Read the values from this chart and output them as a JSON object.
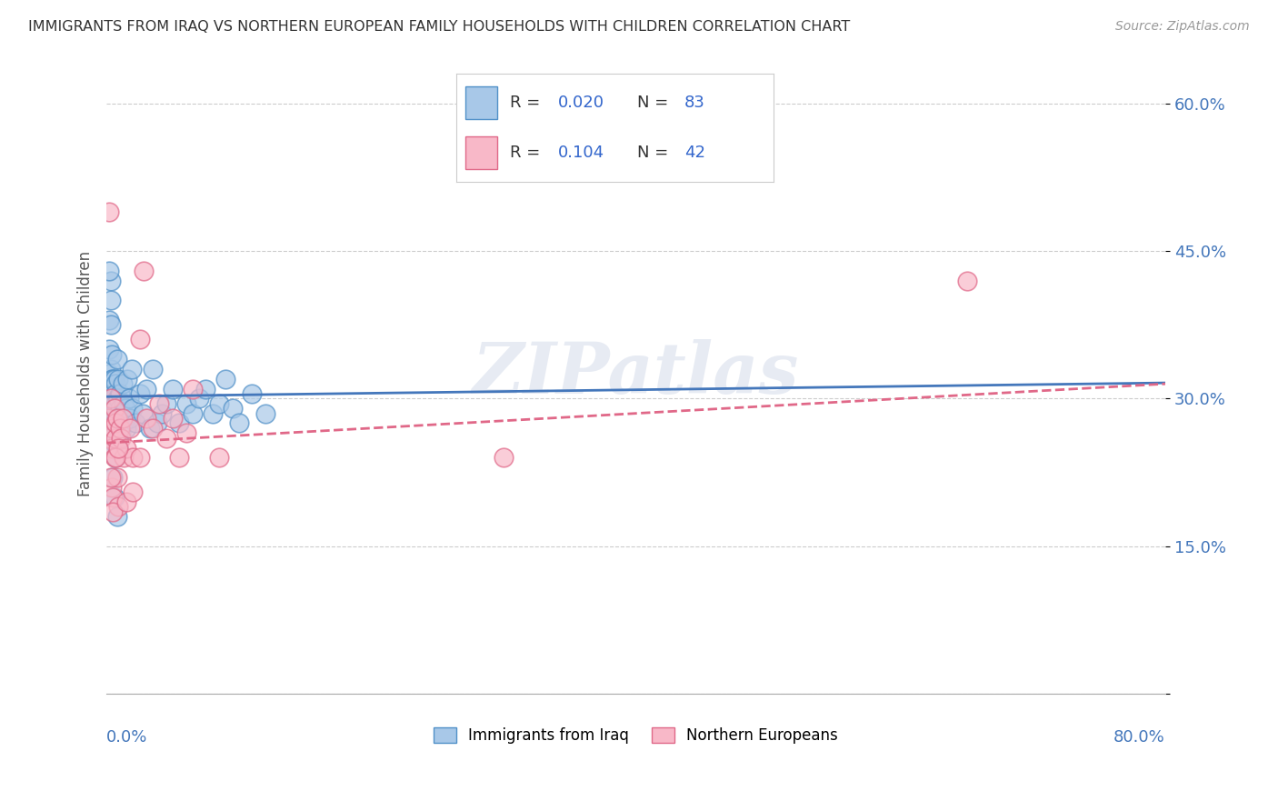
{
  "title": "IMMIGRANTS FROM IRAQ VS NORTHERN EUROPEAN FAMILY HOUSEHOLDS WITH CHILDREN CORRELATION CHART",
  "source": "Source: ZipAtlas.com",
  "ylabel": "Family Households with Children",
  "xlim": [
    0.0,
    0.8
  ],
  "ylim": [
    0.0,
    0.65
  ],
  "yticks": [
    0.0,
    0.15,
    0.3,
    0.45,
    0.6
  ],
  "ytick_labels": [
    "",
    "15.0%",
    "30.0%",
    "45.0%",
    "60.0%"
  ],
  "legend_r1": "R = ",
  "legend_v1": "0.020",
  "legend_n1_label": "  N = ",
  "legend_n1_val": "83",
  "legend_r2": "R = ",
  "legend_v2": "0.104",
  "legend_n2_label": "  N = ",
  "legend_n2_val": "42",
  "legend_label1": "Immigrants from Iraq",
  "legend_label2": "Northern Europeans",
  "color_blue_fill": "#a8c8e8",
  "color_blue_edge": "#5090c8",
  "color_pink_fill": "#f8b8c8",
  "color_pink_edge": "#e06888",
  "color_blue_line": "#4477bb",
  "color_pink_line": "#e06888",
  "watermark": "ZIPatlas",
  "iraq_x": [
    0.001,
    0.001,
    0.002,
    0.002,
    0.002,
    0.002,
    0.003,
    0.003,
    0.003,
    0.003,
    0.003,
    0.004,
    0.004,
    0.004,
    0.004,
    0.004,
    0.005,
    0.005,
    0.005,
    0.005,
    0.005,
    0.005,
    0.006,
    0.006,
    0.006,
    0.006,
    0.006,
    0.007,
    0.007,
    0.007,
    0.007,
    0.008,
    0.008,
    0.008,
    0.008,
    0.009,
    0.009,
    0.009,
    0.01,
    0.01,
    0.01,
    0.011,
    0.011,
    0.012,
    0.012,
    0.013,
    0.013,
    0.014,
    0.015,
    0.016,
    0.017,
    0.018,
    0.019,
    0.02,
    0.022,
    0.025,
    0.027,
    0.03,
    0.033,
    0.035,
    0.038,
    0.042,
    0.045,
    0.05,
    0.055,
    0.06,
    0.065,
    0.07,
    0.075,
    0.08,
    0.085,
    0.09,
    0.095,
    0.1,
    0.11,
    0.12,
    0.002,
    0.003,
    0.005,
    0.006,
    0.007,
    0.008,
    0.009
  ],
  "iraq_y": [
    0.295,
    0.31,
    0.38,
    0.35,
    0.325,
    0.3,
    0.42,
    0.375,
    0.33,
    0.295,
    0.28,
    0.3,
    0.32,
    0.345,
    0.275,
    0.31,
    0.25,
    0.28,
    0.32,
    0.3,
    0.27,
    0.29,
    0.255,
    0.285,
    0.32,
    0.3,
    0.275,
    0.26,
    0.29,
    0.315,
    0.305,
    0.34,
    0.28,
    0.3,
    0.27,
    0.25,
    0.32,
    0.3,
    0.27,
    0.29,
    0.305,
    0.28,
    0.265,
    0.315,
    0.285,
    0.295,
    0.275,
    0.29,
    0.27,
    0.32,
    0.3,
    0.28,
    0.33,
    0.29,
    0.275,
    0.305,
    0.285,
    0.31,
    0.27,
    0.33,
    0.275,
    0.285,
    0.295,
    0.31,
    0.275,
    0.295,
    0.285,
    0.3,
    0.31,
    0.285,
    0.295,
    0.32,
    0.29,
    0.275,
    0.305,
    0.285,
    0.43,
    0.4,
    0.22,
    0.2,
    0.24,
    0.18,
    0.26
  ],
  "north_eu_x": [
    0.001,
    0.002,
    0.002,
    0.003,
    0.004,
    0.004,
    0.005,
    0.005,
    0.006,
    0.006,
    0.007,
    0.007,
    0.008,
    0.008,
    0.009,
    0.01,
    0.011,
    0.012,
    0.013,
    0.015,
    0.018,
    0.02,
    0.025,
    0.028,
    0.03,
    0.035,
    0.04,
    0.045,
    0.05,
    0.055,
    0.06,
    0.065,
    0.085,
    0.003,
    0.005,
    0.007,
    0.009,
    0.015,
    0.02,
    0.025,
    0.3,
    0.65
  ],
  "north_eu_y": [
    0.28,
    0.26,
    0.49,
    0.3,
    0.25,
    0.21,
    0.27,
    0.2,
    0.29,
    0.24,
    0.26,
    0.275,
    0.28,
    0.22,
    0.19,
    0.27,
    0.26,
    0.28,
    0.24,
    0.25,
    0.27,
    0.24,
    0.36,
    0.43,
    0.28,
    0.27,
    0.295,
    0.26,
    0.28,
    0.24,
    0.265,
    0.31,
    0.24,
    0.22,
    0.185,
    0.24,
    0.25,
    0.195,
    0.205,
    0.24,
    0.24,
    0.42
  ],
  "blue_line_x0": 0.0,
  "blue_line_x1": 0.8,
  "blue_line_y0": 0.302,
  "blue_line_y1": 0.316,
  "pink_line_x0": 0.0,
  "pink_line_x1": 0.8,
  "pink_line_y0": 0.255,
  "pink_line_y1": 0.315
}
